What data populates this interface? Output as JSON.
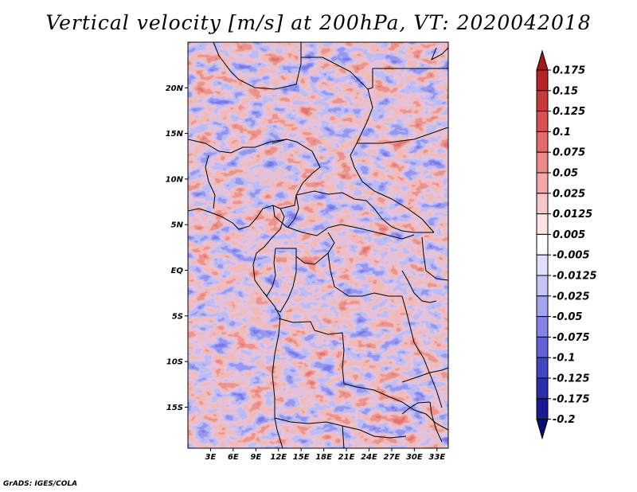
{
  "title": "Vertical velocity [m/s] at 200hPa, VT: 2020042018",
  "credit": "GrADS: IGES/COLA",
  "map": {
    "lon_ticks": [
      "3E",
      "6E",
      "9E",
      "12E",
      "15E",
      "18E",
      "21E",
      "24E",
      "27E",
      "30E",
      "33E"
    ],
    "lat_ticks": [
      "20N",
      "15N",
      "10N",
      "5N",
      "EQ",
      "5S",
      "10S",
      "15S"
    ],
    "lon_range": [
      0,
      34.5
    ],
    "lat_range": [
      -19.5,
      25
    ]
  },
  "colorbar": {
    "labels": [
      "0.175",
      "0.15",
      "0.125",
      "0.1",
      "0.075",
      "0.05",
      "0.025",
      "0.0125",
      "0.005",
      "-0.005",
      "-0.0125",
      "-0.025",
      "-0.05",
      "-0.075",
      "-0.1",
      "-0.125",
      "-0.175",
      "-0.2"
    ],
    "colors": [
      "#a01818",
      "#b82424",
      "#c83a3a",
      "#d85050",
      "#e46a6a",
      "#ee8a8a",
      "#f4a8a8",
      "#f8c6c6",
      "#fce4e4",
      "#ffffff",
      "#e0e0fc",
      "#c4c4f6",
      "#a4a4ee",
      "#8484e6",
      "#6262d8",
      "#4444c6",
      "#2c2cae",
      "#1a1a94",
      "#0c0c78"
    ]
  }
}
